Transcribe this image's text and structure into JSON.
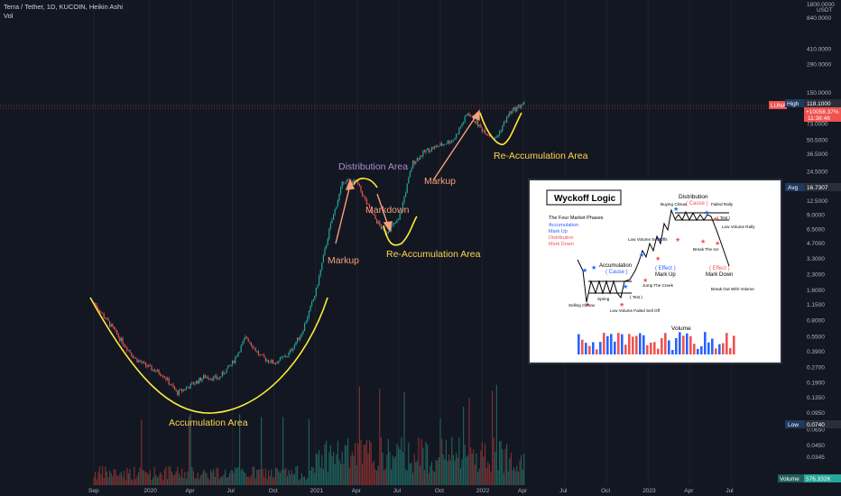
{
  "header": {
    "title": "Terra / Tether, 1D, KUCOIN, Heikin Ashi",
    "vol_label": "Vol"
  },
  "colors": {
    "background": "#131722",
    "bull": "#26a69a",
    "bear": "#ef5350",
    "curve": "#ffeb3b",
    "annotation_orange": "#f8a07a",
    "annotation_purple": "#b28bd6",
    "annotation_yellow": "#ffd54f",
    "label_blue": "#2962ff"
  },
  "chart_data": {
    "type": "candlestick",
    "symbol": "LUNA",
    "y_axis": {
      "unit": "USDT",
      "scale": "log",
      "ticks": [
        "840.0000",
        "410.0000",
        "290.0000",
        "150.0000",
        "73.0000",
        "50.5000",
        "36.5000",
        "24.5000",
        "12.5000",
        "9.0000",
        "6.5000",
        "4.7000",
        "3.3000",
        "2.3000",
        "1.6000",
        "1.1500",
        "0.8000",
        "0.5500",
        "0.3900",
        "0.2700",
        "0.1900",
        "0.1350",
        "0.0950",
        "0.0650",
        "0.0450",
        "0.0345"
      ],
      "top_label": "1800.0000"
    },
    "x_axis": {
      "ticks": [
        "Sep",
        "2020",
        "Apr",
        "Jul",
        "Oct",
        "2021",
        "Apr",
        "Jul",
        "Oct",
        "2022",
        "Apr",
        "Jul",
        "Oct",
        "2023",
        "Apr",
        "Jul"
      ]
    },
    "price_labels": [
      {
        "name": "LUNA",
        "value": "",
        "extra": [
          "+10058.37%",
          "11:38:46"
        ]
      },
      {
        "name": "High",
        "value": "118.1000"
      },
      {
        "name": "Avg",
        "value": "16.7307"
      },
      {
        "name": "Low",
        "value": "0.0740"
      },
      {
        "name": "Volume",
        "value": "576.332K"
      }
    ],
    "price_path": [
      {
        "date": "2019-09",
        "price": 1.2
      },
      {
        "date": "2019-10",
        "price": 0.78
      },
      {
        "date": "2019-11",
        "price": 0.5
      },
      {
        "date": "2019-12",
        "price": 0.33
      },
      {
        "date": "2020-01",
        "price": 0.27
      },
      {
        "date": "2020-02",
        "price": 0.23
      },
      {
        "date": "2020-03",
        "price": 0.15
      },
      {
        "date": "2020-04",
        "price": 0.18
      },
      {
        "date": "2020-05",
        "price": 0.22
      },
      {
        "date": "2020-06",
        "price": 0.21
      },
      {
        "date": "2020-07",
        "price": 0.3
      },
      {
        "date": "2020-08",
        "price": 0.55
      },
      {
        "date": "2020-09",
        "price": 0.35
      },
      {
        "date": "2020-10",
        "price": 0.3
      },
      {
        "date": "2020-11",
        "price": 0.36
      },
      {
        "date": "2020-12",
        "price": 0.6
      },
      {
        "date": "2021-01",
        "price": 1.5
      },
      {
        "date": "2021-02",
        "price": 6.5
      },
      {
        "date": "2021-03",
        "price": 20.0
      },
      {
        "date": "2021-04",
        "price": 19.0
      },
      {
        "date": "2021-05",
        "price": 9.5
      },
      {
        "date": "2021-06",
        "price": 6.0
      },
      {
        "date": "2021-07",
        "price": 8.0
      },
      {
        "date": "2021-08",
        "price": 30.0
      },
      {
        "date": "2021-09",
        "price": 40.0
      },
      {
        "date": "2021-10",
        "price": 45.0
      },
      {
        "date": "2021-11",
        "price": 52.0
      },
      {
        "date": "2021-12",
        "price": 95.0
      },
      {
        "date": "2022-01",
        "price": 65.0
      },
      {
        "date": "2022-02",
        "price": 52.0
      },
      {
        "date": "2022-03",
        "price": 95.0
      },
      {
        "date": "2022-04",
        "price": 118.0
      }
    ],
    "annotations": [
      {
        "text": "Accumulation Area",
        "color": "#ffd54f"
      },
      {
        "text": "Markup",
        "color": "#f8a07a"
      },
      {
        "text": "Distribution Area",
        "color": "#b28bd6"
      },
      {
        "text": "Markdown",
        "color": "#f8a07a"
      },
      {
        "text": "Re-Accumulation Area",
        "color": "#ffd54f"
      },
      {
        "text": "Markup",
        "color": "#f8a07a"
      },
      {
        "text": "Re-Accumulation Area",
        "color": "#ffd54f"
      }
    ]
  },
  "inset": {
    "title": "Wyckoff Logic",
    "phases_title": "The Four Market Phases",
    "phases": [
      {
        "text": "Accumulation",
        "color": "#2962ff"
      },
      {
        "text": "Mark Up",
        "color": "#2962ff"
      },
      {
        "text": "Distribution",
        "color": "#ef5350"
      },
      {
        "text": "Mark Down",
        "color": "#ef5350"
      }
    ],
    "labels": {
      "distribution": "Distribution",
      "dist_cause": "( Cause )",
      "buying_climax": "Buying Climax",
      "failed_rally": "Failed Rally",
      "test_top": "( Test )",
      "low_volume_rally": "Low Volume Rally",
      "break_ice": "Break The Ice",
      "lv_sell_offs": "Low Volume Sell Offs",
      "effect_markup": "( Effect )",
      "markup": "Mark Up",
      "effect_markdown": "( Effect )",
      "markdown": "Mark Down",
      "accumulation": "Accumulation",
      "acc_cause": "( Cause )",
      "jump_creek": "Jump The Creek",
      "breakout": "Break Out With Volume",
      "selling_climax": "Selling Climax",
      "spring": "Spring",
      "test_bottom": "( Test )",
      "lv_failed": "Low Volume Failed Sell Off",
      "volume": "Volume"
    }
  }
}
